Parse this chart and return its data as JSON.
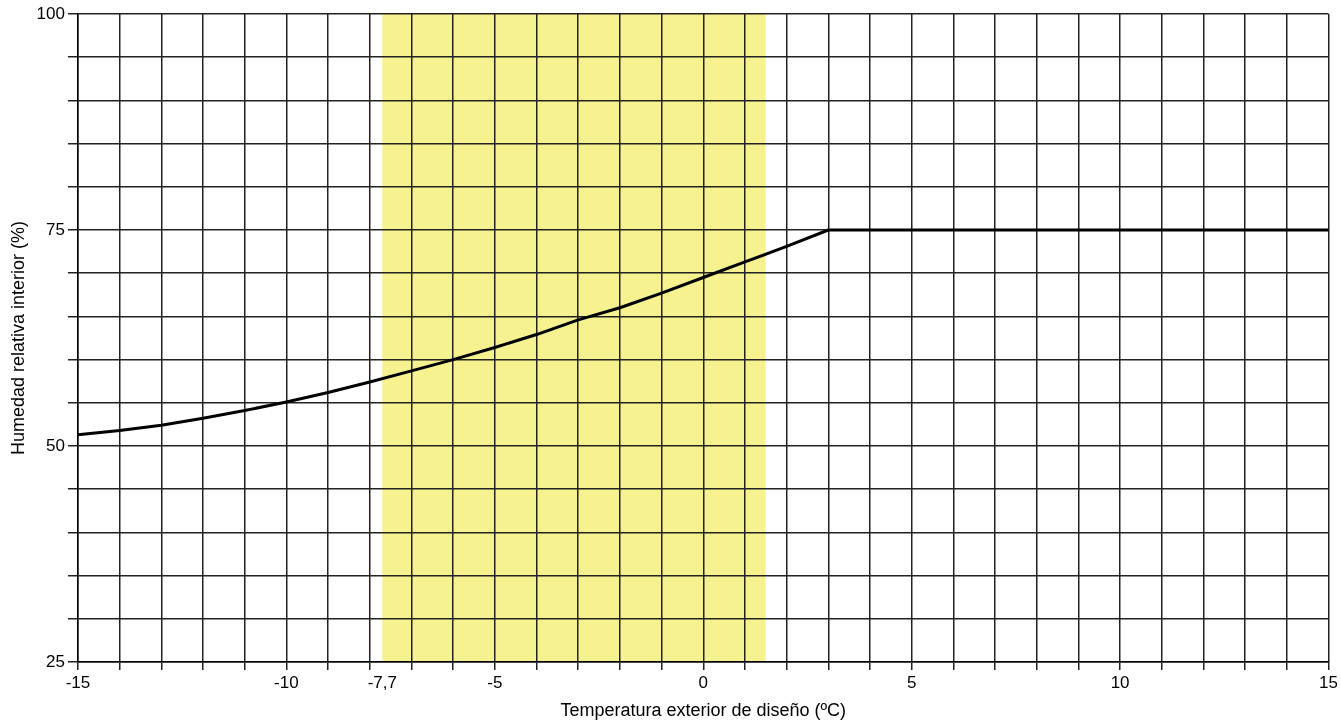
{
  "chart_data": {
    "type": "line",
    "xlabel": "Temperatura exterior de diseño (ºC)",
    "ylabel": "Humedad relativa interior (%)",
    "x": [
      -15,
      -14,
      -13,
      -12,
      -11,
      -10,
      -9,
      -8,
      -7,
      -6,
      -5,
      -4,
      -3,
      -2,
      -1,
      0,
      1,
      2,
      3,
      15
    ],
    "series": [
      {
        "color": "#000000",
        "values": [
          51.3,
          51.8,
          52.4,
          53.2,
          54.1,
          55.1,
          56.2,
          57.4,
          58.7,
          60.0,
          61.4,
          62.9,
          64.6,
          66.0,
          67.7,
          69.5,
          71.3,
          73.1,
          75,
          75
        ]
      }
    ],
    "xlim": [
      -15,
      15
    ],
    "xticks": [
      -15,
      {
        "value": -14,
        "label": null
      },
      {
        "value": -13,
        "label": null
      },
      {
        "value": -12,
        "label": null
      },
      {
        "value": -11,
        "label": null
      },
      -10,
      {
        "value": -9,
        "label": null
      },
      {
        "value": -8,
        "label": null
      },
      {
        "value": -7.7,
        "label": "-7,7"
      },
      {
        "value": -7,
        "label": null
      },
      {
        "value": -6,
        "label": null
      },
      -5,
      {
        "value": -4,
        "label": null
      },
      {
        "value": -3,
        "label": null
      },
      {
        "value": -2,
        "label": null
      },
      {
        "value": -1,
        "label": null
      },
      0,
      {
        "value": 1,
        "label": null
      },
      {
        "value": 2,
        "label": null
      },
      {
        "value": 3,
        "label": null
      },
      {
        "value": 4,
        "label": null
      },
      5,
      {
        "value": 6,
        "label": null
      },
      {
        "value": 7,
        "label": null
      },
      {
        "value": 8,
        "label": null
      },
      {
        "value": 9,
        "label": null
      },
      10,
      {
        "value": 11,
        "label": null
      },
      {
        "value": 12,
        "label": null
      },
      {
        "value": 13,
        "label": null
      },
      {
        "value": 14,
        "label": null
      },
      15
    ],
    "ylim": [
      25,
      100
    ],
    "yticks": [
      25,
      {
        "value": 30,
        "label": null
      },
      {
        "value": 35,
        "label": null
      },
      {
        "value": 40,
        "label": null
      },
      {
        "value": 45,
        "label": null
      },
      50,
      {
        "value": 55,
        "label": null
      },
      {
        "value": 60,
        "label": null
      },
      {
        "value": 65,
        "label": null
      },
      {
        "value": 70,
        "label": null
      },
      75,
      {
        "value": 80,
        "label": null
      },
      {
        "value": 85,
        "label": null
      },
      {
        "value": 90,
        "label": null
      },
      {
        "value": 95,
        "label": null
      },
      100
    ],
    "bands": [
      {
        "axis": "x",
        "from": -7.7,
        "to": 1.5,
        "color": "#f5f28f"
      }
    ],
    "grid": true,
    "legend": false,
    "marker": "none",
    "line_style": "solid"
  }
}
